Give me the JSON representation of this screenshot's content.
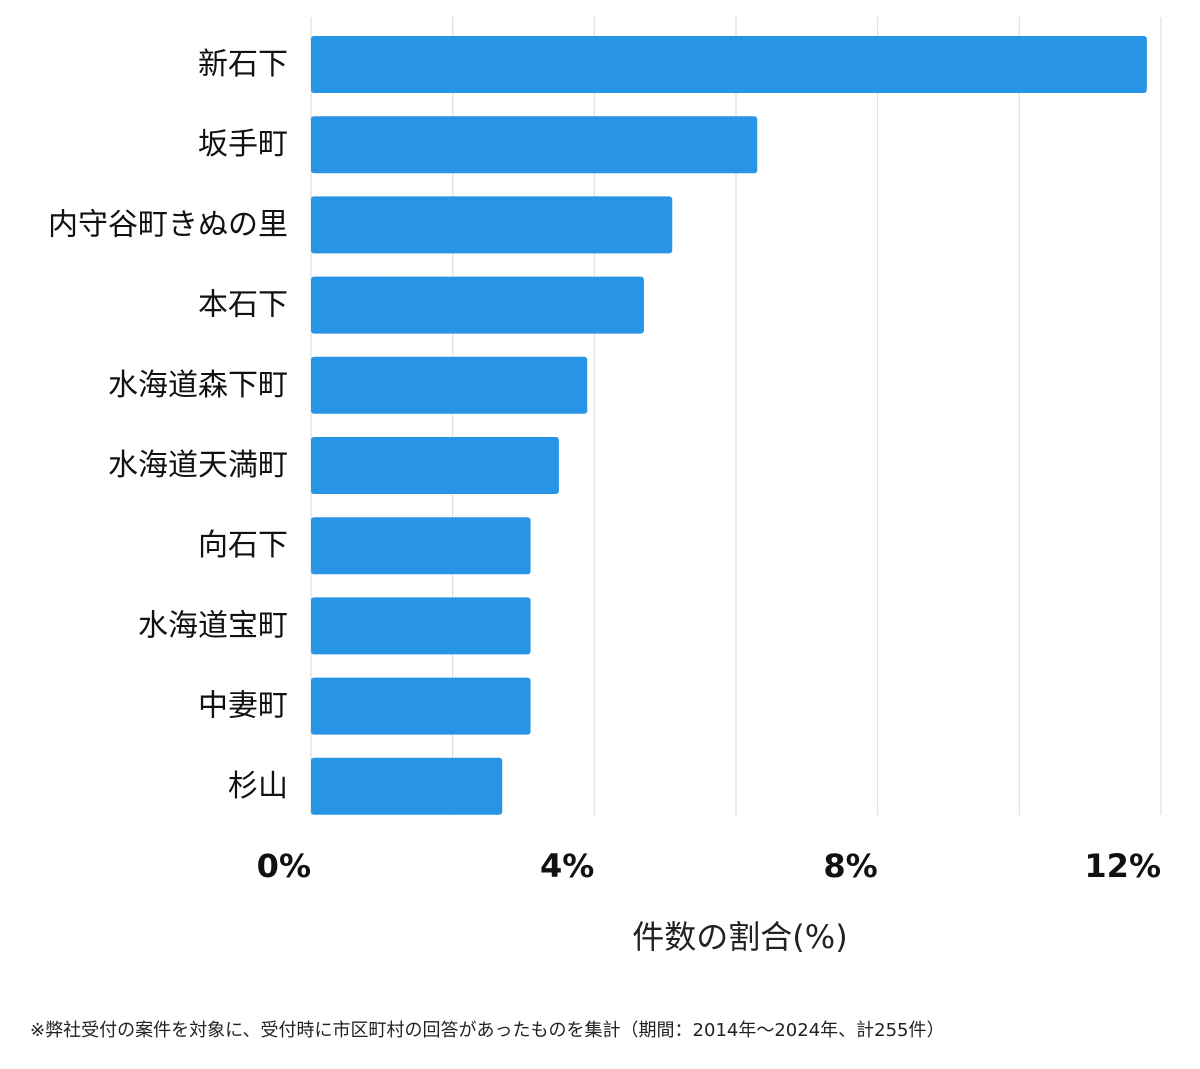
{
  "chart_data": {
    "type": "bar",
    "orientation": "horizontal",
    "categories": [
      "新石下",
      "坂手町",
      "内守谷町きぬの里",
      "本石下",
      "水海道森下町",
      "水海道天満町",
      "向石下",
      "水海道宝町",
      "中妻町",
      "杉山"
    ],
    "values": [
      11.8,
      6.3,
      5.1,
      4.7,
      3.9,
      3.5,
      3.1,
      3.1,
      3.1,
      2.7
    ],
    "xlabel": "件数の割合(%)",
    "ylabel": "",
    "xlim": [
      0,
      12
    ],
    "xticks": [
      "0%",
      "4%",
      "8%",
      "12%"
    ],
    "bar_color": "#2894E6",
    "grid": true
  },
  "footnote": "※弊社受付の案件を対象に、受付時に市区町村の回答があったものを集計（期間：2014年～2024年、計255件）"
}
